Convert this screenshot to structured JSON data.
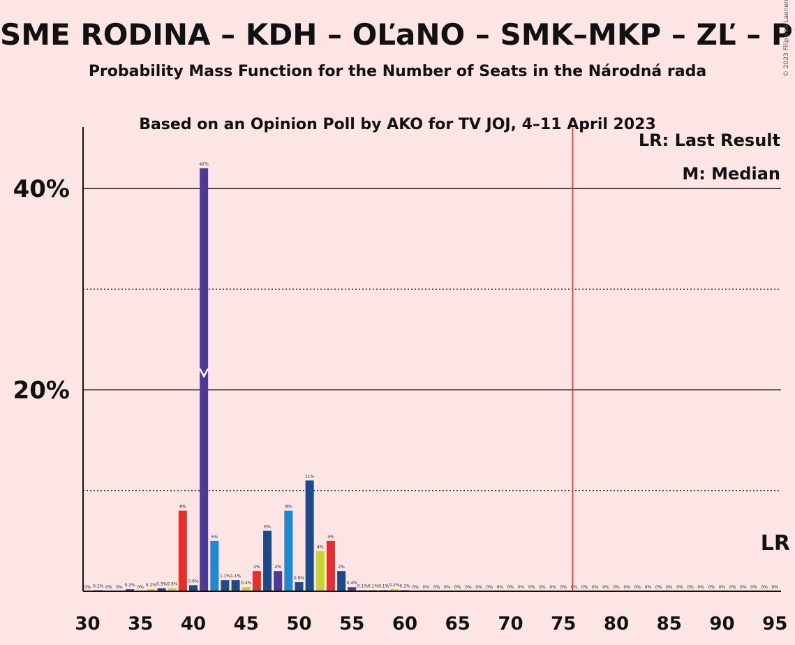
{
  "chart_data": {
    "type": "bar",
    "title": "SME RODINA – KDH – OĽaNO – SMK–MKP – ZĽ – PS–SaS",
    "subtitle1": "Probability Mass Function for the Number of Seats in the Národná rada",
    "subtitle2": "Based on an Opinion Poll by AKO for TV JOJ, 4–11 April 2023",
    "copyright": "© 2023 Filip van Laenen",
    "xlim": [
      30,
      95
    ],
    "ylim": [
      0,
      46
    ],
    "x_ticks": [
      30,
      35,
      40,
      45,
      50,
      55,
      60,
      65,
      70,
      75,
      80,
      85,
      90,
      95
    ],
    "y_ticks": [
      {
        "value": 20,
        "label": "20%"
      },
      {
        "value": 40,
        "label": "40%"
      }
    ],
    "dotted_gridlines": [
      10,
      30
    ],
    "legend": {
      "last_result": "LR: Last Result",
      "median": "M: Median"
    },
    "last_result": {
      "seats": 76,
      "label": "LR"
    },
    "median": {
      "seats": 41
    },
    "bars": [
      {
        "x": 30,
        "value": 0,
        "label": "0%",
        "color": "#3f3f8f"
      },
      {
        "x": 31,
        "value": 0.1,
        "label": "0.1%",
        "color": "#3f3f8f"
      },
      {
        "x": 32,
        "value": 0,
        "label": "0%",
        "color": "#3f3f8f"
      },
      {
        "x": 33,
        "value": 0,
        "label": "0%",
        "color": "#3f3f8f"
      },
      {
        "x": 34,
        "value": 0.2,
        "label": "0.2%",
        "color": "#4b3a96"
      },
      {
        "x": 35,
        "value": 0,
        "label": "0%",
        "color": "#3f3f8f"
      },
      {
        "x": 36,
        "value": 0.2,
        "label": "0.2%",
        "color": "#c8d42a"
      },
      {
        "x": 37,
        "value": 0.3,
        "label": "0.3%",
        "color": "#1f4a8a"
      },
      {
        "x": 38,
        "value": 0.3,
        "label": "0.3%",
        "color": "#c8d42a"
      },
      {
        "x": 39,
        "value": 8,
        "label": "8%",
        "color": "#e52f2f"
      },
      {
        "x": 40,
        "value": 0.6,
        "label": "0.6%",
        "color": "#1f4a8a"
      },
      {
        "x": 41,
        "value": 42,
        "label": "42%",
        "color": "#4b3a96"
      },
      {
        "x": 42,
        "value": 5,
        "label": "5%",
        "color": "#1e88d0"
      },
      {
        "x": 43,
        "value": 1.1,
        "label": "1.1%",
        "color": "#1f4a8a"
      },
      {
        "x": 44,
        "value": 1.1,
        "label": "1.1%",
        "color": "#1f4a8a"
      },
      {
        "x": 45,
        "value": 0.4,
        "label": "0.4%",
        "color": "#c8d42a"
      },
      {
        "x": 46,
        "value": 2,
        "label": "2%",
        "color": "#e52f2f"
      },
      {
        "x": 47,
        "value": 6,
        "label": "6%",
        "color": "#1f4a8a"
      },
      {
        "x": 48,
        "value": 2,
        "label": "2%",
        "color": "#4b3a96"
      },
      {
        "x": 49,
        "value": 8,
        "label": "8%",
        "color": "#1e88d0"
      },
      {
        "x": 50,
        "value": 0.9,
        "label": "0.9%",
        "color": "#1f4a8a"
      },
      {
        "x": 51,
        "value": 11,
        "label": "11%",
        "color": "#1f4a8a"
      },
      {
        "x": 52,
        "value": 4,
        "label": "4%",
        "color": "#c8d42a"
      },
      {
        "x": 53,
        "value": 5,
        "label": "5%",
        "color": "#e52f2f"
      },
      {
        "x": 54,
        "value": 2,
        "label": "2%",
        "color": "#1f4a8a"
      },
      {
        "x": 55,
        "value": 0.4,
        "label": "0.4%",
        "color": "#4b3a96"
      },
      {
        "x": 56,
        "value": 0.1,
        "label": "0.1%",
        "color": "#1e88d0"
      },
      {
        "x": 57,
        "value": 0.1,
        "label": "0.1%",
        "color": "#1f4a8a"
      },
      {
        "x": 58,
        "value": 0.1,
        "label": "0.1%",
        "color": "#1f4a8a"
      },
      {
        "x": 59,
        "value": 0.2,
        "label": "0.2%",
        "color": "#c8d42a"
      },
      {
        "x": 60,
        "value": 0.1,
        "label": "0.1%",
        "color": "#1f4a8a"
      },
      {
        "x": 61,
        "value": 0,
        "label": "0%",
        "color": "#1f4a8a"
      },
      {
        "x": 62,
        "value": 0,
        "label": "0%",
        "color": "#1f4a8a"
      },
      {
        "x": 63,
        "value": 0,
        "label": "0%",
        "color": "#1f4a8a"
      },
      {
        "x": 64,
        "value": 0,
        "label": "0%",
        "color": "#1f4a8a"
      },
      {
        "x": 65,
        "value": 0,
        "label": "0%",
        "color": "#1f4a8a"
      },
      {
        "x": 66,
        "value": 0,
        "label": "0%",
        "color": "#1f4a8a"
      },
      {
        "x": 67,
        "value": 0,
        "label": "0%",
        "color": "#1f4a8a"
      },
      {
        "x": 68,
        "value": 0,
        "label": "0%",
        "color": "#1f4a8a"
      },
      {
        "x": 69,
        "value": 0,
        "label": "0%",
        "color": "#1f4a8a"
      },
      {
        "x": 70,
        "value": 0,
        "label": "0%",
        "color": "#1f4a8a"
      },
      {
        "x": 71,
        "value": 0,
        "label": "0%",
        "color": "#1f4a8a"
      },
      {
        "x": 72,
        "value": 0,
        "label": "0%",
        "color": "#1f4a8a"
      },
      {
        "x": 73,
        "value": 0,
        "label": "0%",
        "color": "#1f4a8a"
      },
      {
        "x": 74,
        "value": 0,
        "label": "0%",
        "color": "#1f4a8a"
      },
      {
        "x": 75,
        "value": 0,
        "label": "0%",
        "color": "#1f4a8a"
      },
      {
        "x": 76,
        "value": 0,
        "label": "0%",
        "color": "#1f4a8a"
      },
      {
        "x": 77,
        "value": 0,
        "label": "0%",
        "color": "#1f4a8a"
      },
      {
        "x": 78,
        "value": 0,
        "label": "0%",
        "color": "#1f4a8a"
      },
      {
        "x": 79,
        "value": 0,
        "label": "0%",
        "color": "#1f4a8a"
      },
      {
        "x": 80,
        "value": 0,
        "label": "0%",
        "color": "#1f4a8a"
      },
      {
        "x": 81,
        "value": 0,
        "label": "0%",
        "color": "#1f4a8a"
      },
      {
        "x": 82,
        "value": 0,
        "label": "0%",
        "color": "#1f4a8a"
      },
      {
        "x": 83,
        "value": 0,
        "label": "0%",
        "color": "#1f4a8a"
      },
      {
        "x": 84,
        "value": 0,
        "label": "0%",
        "color": "#1f4a8a"
      },
      {
        "x": 85,
        "value": 0,
        "label": "0%",
        "color": "#1f4a8a"
      },
      {
        "x": 86,
        "value": 0,
        "label": "0%",
        "color": "#1f4a8a"
      },
      {
        "x": 87,
        "value": 0,
        "label": "0%",
        "color": "#1f4a8a"
      },
      {
        "x": 88,
        "value": 0,
        "label": "0%",
        "color": "#1f4a8a"
      },
      {
        "x": 89,
        "value": 0,
        "label": "0%",
        "color": "#1f4a8a"
      },
      {
        "x": 90,
        "value": 0,
        "label": "0%",
        "color": "#1f4a8a"
      },
      {
        "x": 91,
        "value": 0,
        "label": "0%",
        "color": "#1f4a8a"
      },
      {
        "x": 92,
        "value": 0,
        "label": "0%",
        "color": "#1f4a8a"
      },
      {
        "x": 93,
        "value": 0,
        "label": "0%",
        "color": "#1f4a8a"
      },
      {
        "x": 94,
        "value": 0,
        "label": "0%",
        "color": "#1f4a8a"
      },
      {
        "x": 95,
        "value": 0,
        "label": "0%",
        "color": "#1f4a8a"
      }
    ]
  },
  "colors": {
    "background": "#fde5e6",
    "last_result_line": "#e52f2f",
    "axis": "#111111"
  }
}
